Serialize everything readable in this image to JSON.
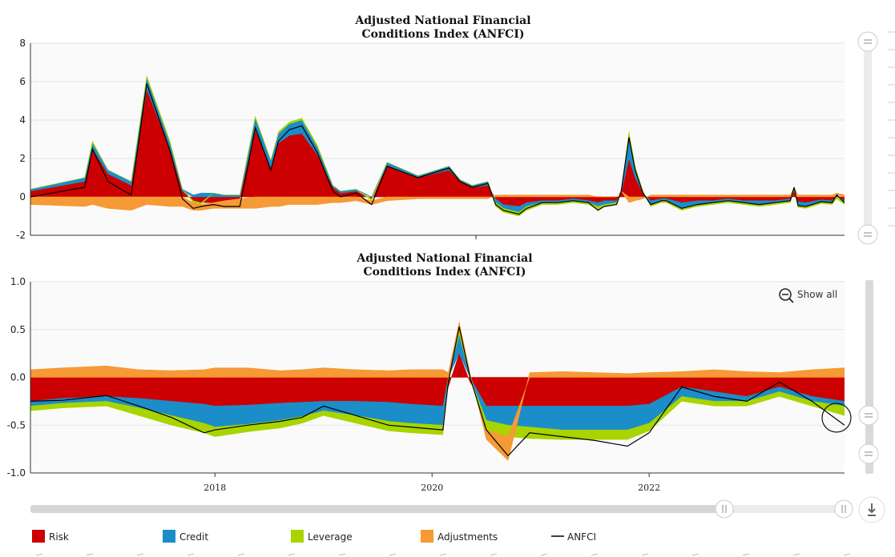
{
  "charts": {
    "top_title_line1": "Adjusted National Financial",
    "top_title_line2": "Conditions Index (ANFCI)",
    "bottom_title_line1": "Adjusted National Financial",
    "bottom_title_line2": "Conditions Index (ANFCI)",
    "show_all_label": "Show all",
    "legend": [
      {
        "name": "Risk",
        "color": "#cc0000"
      },
      {
        "name": "Credit",
        "color": "#1b8dc9"
      },
      {
        "name": "Leverage",
        "color": "#a8d400"
      },
      {
        "name": "Adjustments",
        "color": "#f59a34"
      },
      {
        "name": "ANFCI",
        "color": "#000000"
      }
    ]
  },
  "chart_data": [
    {
      "type": "area",
      "title": "Adjusted National Financial Conditions Index (ANFCI)",
      "view": "overview",
      "ylim": [
        -2,
        8
      ],
      "yticks": [
        "8",
        "6",
        "4",
        "2",
        "0",
        "-2"
      ],
      "x": [
        1971.0,
        1974.5,
        1975.0,
        1976.0,
        1977.5,
        1978.5,
        1980.0,
        1980.8,
        1981.5,
        1982.0,
        1982.8,
        1983.5,
        1984.5,
        1985.5,
        1986.5,
        1987.0,
        1987.7,
        1988.5,
        1989.5,
        1990.5,
        1991.0,
        1992.0,
        1993.0,
        1994.0,
        1996.0,
        1998.0,
        1998.7,
        1999.5,
        2000.5,
        2001.0,
        2001.5,
        2002.5,
        2003.0,
        2004.0,
        2005.0,
        2006.0,
        2007.0,
        2007.6,
        2008.0,
        2008.8,
        2009.1,
        2009.6,
        2010.0,
        2010.5,
        2011.0,
        2011.7,
        2012.0,
        2013.0,
        2014.0,
        2015.0,
        2016.0,
        2017.0,
        2018.0,
        2019.0,
        2020.0,
        2020.25,
        2020.5,
        2021.0,
        2022.0,
        2022.7,
        2023.0,
        2023.5
      ],
      "series": [
        {
          "name": "Risk",
          "values": [
            0.3,
            0.8,
            2.5,
            1.2,
            0.6,
            5.6,
            2.5,
            0.3,
            -0.2,
            -0.3,
            -0.3,
            -0.2,
            -0.1,
            3.5,
            1.5,
            2.8,
            3.2,
            3.3,
            2.2,
            0.5,
            0.2,
            0.3,
            -0.1,
            1.6,
            1.0,
            1.4,
            0.8,
            0.5,
            0.6,
            -0.1,
            -0.4,
            -0.5,
            -0.3,
            -0.2,
            -0.2,
            -0.1,
            -0.2,
            -0.3,
            -0.2,
            -0.2,
            0.2,
            2.0,
            1.0,
            0.2,
            -0.2,
            -0.1,
            -0.1,
            -0.3,
            -0.2,
            -0.2,
            -0.1,
            -0.2,
            -0.2,
            -0.2,
            -0.1,
            0.3,
            -0.25,
            -0.3,
            -0.15,
            -0.2,
            0.1,
            -0.2
          ]
        },
        {
          "name": "Credit",
          "values": [
            0.1,
            0.2,
            0.3,
            0.2,
            0.2,
            0.6,
            0.3,
            0.1,
            0.1,
            0.2,
            0.2,
            0.1,
            0.1,
            0.6,
            0.4,
            0.5,
            0.6,
            0.7,
            0.4,
            0.1,
            0.1,
            0.1,
            0.0,
            0.2,
            0.1,
            0.2,
            0.1,
            0.1,
            0.2,
            -0.2,
            -0.2,
            -0.3,
            -0.2,
            -0.1,
            -0.1,
            -0.1,
            -0.1,
            -0.2,
            -0.2,
            -0.1,
            0.1,
            1.2,
            0.5,
            0.1,
            -0.2,
            -0.1,
            -0.1,
            -0.3,
            -0.2,
            -0.1,
            -0.1,
            -0.1,
            -0.2,
            -0.1,
            -0.1,
            0.1,
            -0.2,
            -0.2,
            -0.1,
            -0.1,
            0.0,
            -0.1
          ]
        },
        {
          "name": "Leverage",
          "values": [
            0.0,
            0.0,
            0.1,
            0.0,
            0.0,
            0.1,
            0.1,
            0.0,
            -0.1,
            -0.1,
            0.0,
            0.0,
            0.0,
            0.1,
            0.0,
            0.1,
            0.1,
            0.1,
            0.1,
            0.0,
            0.0,
            0.0,
            -0.1,
            0.0,
            0.0,
            0.0,
            0.0,
            0.0,
            0.0,
            -0.2,
            -0.2,
            -0.2,
            -0.2,
            -0.1,
            -0.1,
            -0.1,
            -0.1,
            -0.2,
            -0.1,
            -0.1,
            0.0,
            0.2,
            0.1,
            0.0,
            -0.1,
            -0.1,
            -0.1,
            -0.1,
            -0.1,
            -0.1,
            -0.1,
            -0.1,
            -0.1,
            -0.1,
            -0.1,
            0.0,
            -0.1,
            -0.1,
            -0.1,
            -0.1,
            -0.1,
            -0.1
          ]
        },
        {
          "name": "Adjustments",
          "values": [
            -0.4,
            -0.5,
            -0.4,
            -0.6,
            -0.7,
            -0.4,
            -0.5,
            -0.5,
            -0.4,
            -0.3,
            -0.3,
            -0.4,
            -0.5,
            -0.6,
            -0.5,
            -0.5,
            -0.4,
            -0.4,
            -0.4,
            -0.3,
            -0.3,
            -0.2,
            -0.2,
            -0.2,
            -0.1,
            -0.1,
            -0.1,
            -0.1,
            -0.1,
            0.1,
            0.1,
            0.1,
            0.1,
            0.1,
            0.1,
            0.1,
            0.1,
            0.0,
            0.0,
            0.0,
            0.0,
            -0.3,
            -0.2,
            -0.1,
            0.1,
            0.1,
            0.1,
            0.1,
            0.1,
            0.1,
            0.1,
            0.1,
            0.1,
            0.1,
            0.1,
            0.1,
            0.1,
            0.1,
            0.1,
            0.1,
            0.1,
            0.1
          ]
        },
        {
          "name": "ANFCI",
          "values": [
            0.0,
            0.5,
            2.5,
            0.8,
            0.1,
            5.9,
            2.4,
            -0.1,
            -0.6,
            -0.5,
            -0.4,
            -0.5,
            -0.5,
            3.6,
            1.4,
            2.9,
            3.5,
            3.7,
            2.3,
            0.3,
            0.0,
            0.2,
            -0.4,
            1.6,
            1.0,
            1.5,
            0.8,
            0.5,
            0.7,
            -0.4,
            -0.7,
            -0.9,
            -0.6,
            -0.3,
            -0.3,
            -0.2,
            -0.3,
            -0.7,
            -0.5,
            -0.4,
            0.3,
            3.1,
            1.4,
            0.2,
            -0.4,
            -0.2,
            -0.2,
            -0.6,
            -0.4,
            -0.3,
            -0.2,
            -0.3,
            -0.4,
            -0.3,
            -0.2,
            0.5,
            -0.45,
            -0.5,
            -0.25,
            -0.3,
            0.1,
            -0.3
          ]
        }
      ]
    },
    {
      "type": "area",
      "title": "Adjusted National Financial Conditions Index (ANFCI)",
      "view": "zoomed",
      "ylim": [
        -1.0,
        1.0
      ],
      "yticks": [
        "1.0",
        "0.5",
        "0.0",
        "-0.5",
        "-1.0"
      ],
      "xticks": [
        "2018",
        "2020",
        "2022"
      ],
      "x": [
        2016.3,
        2016.6,
        2017.0,
        2017.3,
        2017.6,
        2017.9,
        2018.0,
        2018.3,
        2018.6,
        2018.8,
        2019.0,
        2019.3,
        2019.6,
        2019.8,
        2020.1,
        2020.15,
        2020.25,
        2020.35,
        2020.5,
        2020.7,
        2020.9,
        2021.2,
        2021.5,
        2021.8,
        2022.0,
        2022.3,
        2022.6,
        2022.9,
        2023.2,
        2023.5,
        2023.8
      ],
      "series": [
        {
          "name": "Risk",
          "values": [
            -0.25,
            -0.22,
            -0.2,
            -0.22,
            -0.25,
            -0.28,
            -0.3,
            -0.29,
            -0.27,
            -0.26,
            -0.25,
            -0.25,
            -0.26,
            -0.28,
            -0.3,
            -0.1,
            0.25,
            -0.05,
            -0.3,
            -0.3,
            -0.3,
            -0.3,
            -0.3,
            -0.3,
            -0.28,
            -0.1,
            -0.15,
            -0.2,
            -0.1,
            -0.2,
            -0.25
          ]
        },
        {
          "name": "Credit",
          "values": [
            -0.05,
            -0.05,
            -0.05,
            -0.1,
            -0.15,
            -0.2,
            -0.22,
            -0.2,
            -0.18,
            -0.15,
            -0.1,
            -0.15,
            -0.2,
            -0.2,
            -0.2,
            0.0,
            0.2,
            0.0,
            -0.15,
            -0.2,
            -0.22,
            -0.25,
            -0.25,
            -0.25,
            -0.2,
            -0.1,
            -0.1,
            -0.05,
            -0.05,
            -0.05,
            -0.05
          ]
        },
        {
          "name": "Leverage",
          "values": [
            -0.05,
            -0.05,
            -0.05,
            -0.08,
            -0.1,
            -0.1,
            -0.1,
            -0.08,
            -0.08,
            -0.07,
            -0.05,
            -0.08,
            -0.1,
            -0.1,
            -0.1,
            0.0,
            0.05,
            0.0,
            -0.1,
            -0.12,
            -0.12,
            -0.1,
            -0.1,
            -0.1,
            -0.08,
            -0.05,
            -0.05,
            -0.05,
            -0.05,
            -0.05,
            -0.1
          ]
        },
        {
          "name": "Adjustments",
          "values": [
            0.08,
            0.1,
            0.12,
            0.08,
            0.07,
            0.08,
            0.1,
            0.1,
            0.07,
            0.08,
            0.1,
            0.08,
            0.07,
            0.08,
            0.08,
            0.05,
            0.08,
            0.05,
            -0.1,
            -0.25,
            0.05,
            0.06,
            0.05,
            0.04,
            0.05,
            0.06,
            0.08,
            0.06,
            0.05,
            0.08,
            0.1
          ]
        },
        {
          "name": "ANFCI",
          "values": [
            -0.25,
            -0.24,
            -0.19,
            -0.3,
            -0.42,
            -0.58,
            -0.55,
            -0.5,
            -0.46,
            -0.42,
            -0.3,
            -0.4,
            -0.5,
            -0.52,
            -0.55,
            -0.05,
            0.53,
            0.0,
            -0.55,
            -0.82,
            -0.58,
            -0.62,
            -0.66,
            -0.72,
            -0.58,
            -0.1,
            -0.2,
            -0.25,
            -0.05,
            -0.25,
            -0.5
          ]
        }
      ]
    }
  ]
}
